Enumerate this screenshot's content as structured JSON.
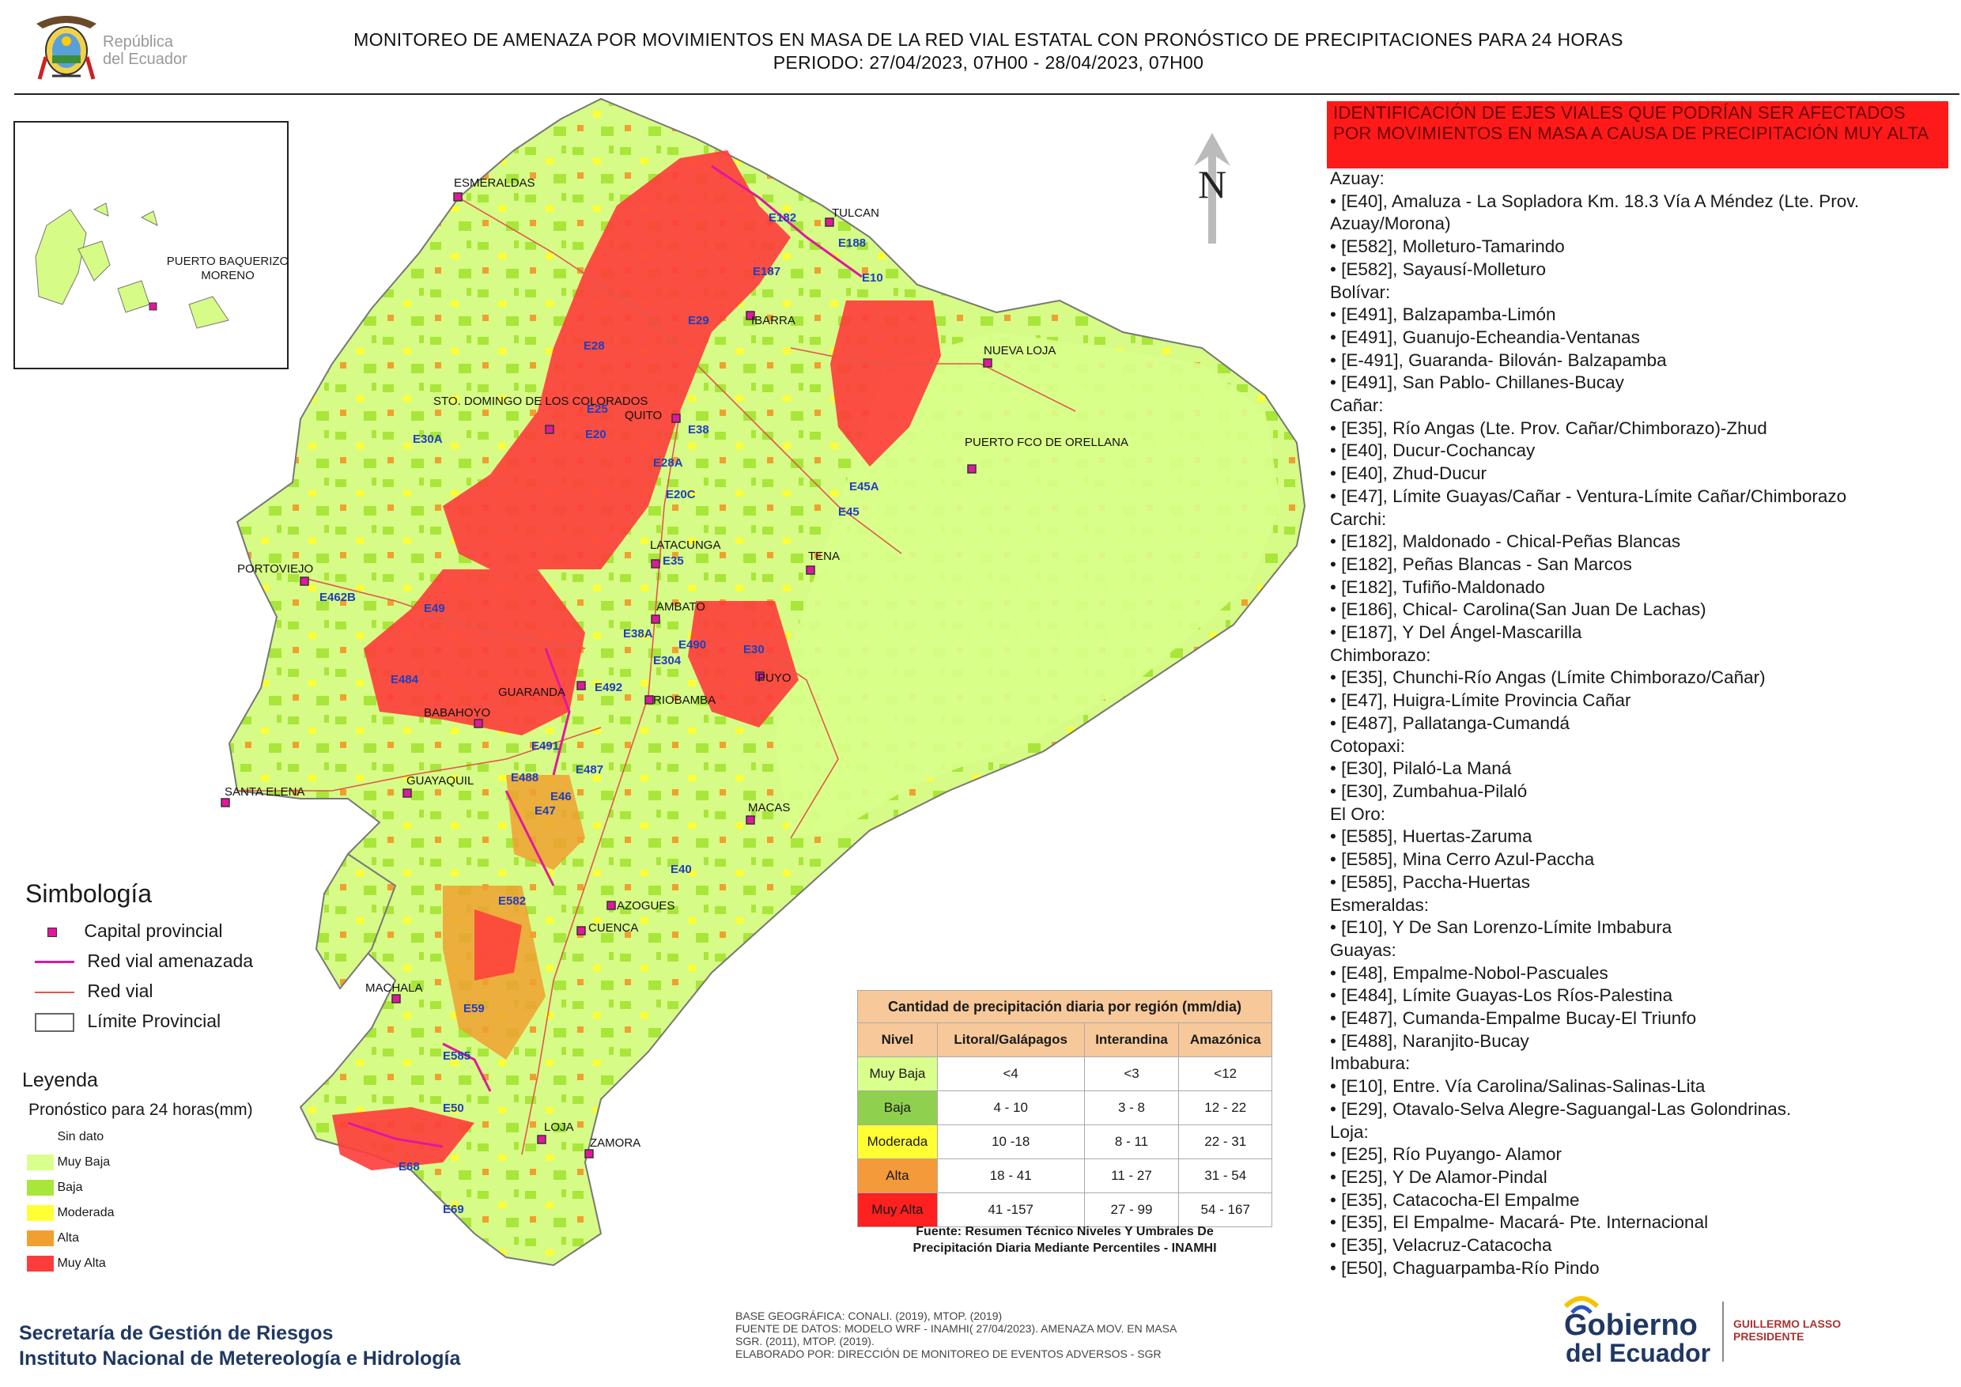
{
  "header": {
    "logo_text_line1": "República",
    "logo_text_line2": "del Ecuador",
    "title_line1": "MONITOREO DE AMENAZA POR MOVIMIENTOS EN MASA DE LA RED VIAL  ESTATAL  CON PRONÓSTICO  DE  PRECIPITACIONES PARA 24 HORAS",
    "title_line2": "PERIODO: 27/04/2023, 07H00 - 28/04/2023, 07H00"
  },
  "map": {
    "north_label": "N",
    "inset_label": "PUERTO BAQUERIZO MORENO",
    "cities": [
      "ESMERALDAS",
      "TULCAN",
      "IBARRA",
      "NUEVA LOJA",
      "STO. DOMINGO DE LOS COLORADOS",
      "QUITO",
      "PUERTO FCO DE ORELLANA",
      "PORTOVIEJO",
      "LATACUNGA",
      "TENA",
      "AMBATO",
      "PUYO",
      "GUARANDA",
      "RIOBAMBA",
      "BABAHOYO",
      "SANTA ELENA",
      "GUAYAQUIL",
      "MACAS",
      "AZOGUES",
      "CUENCA",
      "MACHALA",
      "LOJA",
      "ZAMORA"
    ],
    "road_labels": [
      "E10",
      "E182",
      "E187",
      "E188",
      "E28",
      "E29",
      "E35",
      "E25",
      "E20",
      "E30",
      "E38",
      "E45",
      "E462B",
      "E484",
      "E490",
      "E491",
      "E492",
      "E487",
      "E488",
      "E47",
      "E40",
      "E582",
      "E59",
      "E585",
      "E50",
      "E68",
      "E69",
      "E20C",
      "E28A",
      "E30A",
      "E45A",
      "E49",
      "E38A",
      "E304",
      "E46"
    ]
  },
  "alert": {
    "title": "IDENTIFICACIÓN DE EJES VIALES QUE PODRÍAN SER AFECTADOS POR MOVIMIENTOS EN MASA A CAUSA DE PRECIPITACIÓN MUY ALTA"
  },
  "provinces": [
    {
      "name": "Azuay:",
      "roads": [
        "• [E40], Amaluza - La Sopladora Km. 18.3 Vía A Méndez (Lte. Prov. Azuay/Morona)",
        "• [E582], Molleturo-Tamarindo",
        "• [E582], Sayausí-Molleturo"
      ]
    },
    {
      "name": "Bolívar:",
      "roads": [
        "• [E491], Balzapamba-Limón",
        "• [E491], Guanujo-Echeandia-Ventanas",
        "• [E-491], Guaranda- Bilován- Balzapamba",
        "• [E491], San Pablo- Chillanes-Bucay"
      ]
    },
    {
      "name": "Cañar:",
      "roads": [
        "• [E35], Río Angas (Lte. Prov. Cañar/Chimborazo)-Zhud",
        "• [E40], Ducur-Cochancay",
        "• [E40], Zhud-Ducur",
        "• [E47], Límite Guayas/Cañar - Ventura-Límite Cañar/Chimborazo"
      ]
    },
    {
      "name": "Carchi:",
      "roads": [
        "• [E182], Maldonado - Chical-Peñas Blancas",
        "• [E182], Peñas Blancas - San Marcos",
        "• [E182], Tufiño-Maldonado",
        "• [E186], Chical- Carolina(San Juan De Lachas)",
        "• [E187], Y Del Ángel-Mascarilla"
      ]
    },
    {
      "name": "Chimborazo:",
      "roads": [
        "• [E35], Chunchi-Río Angas (Límite Chimborazo/Cañar)",
        "• [E47], Huigra-Límite Provincia Cañar",
        "• [E487], Pallatanga-Cumandá"
      ]
    },
    {
      "name": "Cotopaxi:",
      "roads": [
        "• [E30], Pilaló-La Maná",
        "• [E30], Zumbahua-Pilaló"
      ]
    },
    {
      "name": "El Oro:",
      "roads": [
        "• [E585], Huertas-Zaruma",
        "• [E585], Mina Cerro Azul-Paccha",
        "• [E585], Paccha-Huertas"
      ]
    },
    {
      "name": "Esmeraldas:",
      "roads": [
        "• [E10], Y De San Lorenzo-Límite Imbabura"
      ]
    },
    {
      "name": "Guayas:",
      "roads": [
        "• [E48], Empalme-Nobol-Pascuales",
        "• [E484], Límite Guayas-Los Ríos-Palestina",
        "• [E487], Cumanda-Empalme Bucay-El Triunfo",
        "• [E488], Naranjito-Bucay"
      ]
    },
    {
      "name": "Imbabura:",
      "roads": [
        "• [E10], Entre. Vía Carolina/Salinas-Salinas-Lita",
        "• [E29], Otavalo-Selva Alegre-Saguangal-Las Golondrinas."
      ]
    },
    {
      "name": "Loja:",
      "roads": [
        "• [E25], Río Puyango- Alamor",
        "• [E25], Y De Alamor-Pindal",
        "• [E35], Catacocha-El Empalme",
        "• [E35], El Empalme- Macará- Pte. Internacional",
        "• [E35], Velacruz-Catacocha",
        "• [E50], Chaguarpamba-Río Pindo"
      ]
    }
  ],
  "simbologia": {
    "title": "Simbología",
    "items": [
      {
        "label": "Capital provincial",
        "icon": "capital-marker-icon"
      },
      {
        "label": "Red vial amenazada",
        "color": "#e0189e"
      },
      {
        "label": "Red vial",
        "color": "#e0584a"
      },
      {
        "label": "Límite Provincial",
        "color": "#666666"
      }
    ]
  },
  "leyenda": {
    "title": "Leyenda",
    "subtitle": "Pronóstico para 24 horas(mm)",
    "items": [
      {
        "label": "Sin dato",
        "color": "#ffffff"
      },
      {
        "label": "Muy Baja",
        "color": "#d9ff8c"
      },
      {
        "label": "Baja",
        "color": "#a8e63a"
      },
      {
        "label": "Moderada",
        "color": "#ffff33"
      },
      {
        "label": "Alta",
        "color": "#f0a030"
      },
      {
        "label": "Muy Alta",
        "color": "#ff3b3b"
      }
    ]
  },
  "precip_table": {
    "caption": "Cantidad de precipitación diaria por región (mm/dia)",
    "headers": [
      "Nivel",
      "Litoral/Galápagos",
      "Interandina",
      "Amazónica"
    ],
    "rows": [
      {
        "level": "Muy Baja",
        "color": "#d9ff8c",
        "values": [
          "<4",
          "<3",
          "<12"
        ]
      },
      {
        "level": "Baja",
        "color": "#8fd14f",
        "values": [
          "4 - 10",
          "3 - 8",
          "12 - 22"
        ]
      },
      {
        "level": "Moderada",
        "color": "#ffff33",
        "values": [
          "10 -18",
          "8 - 11",
          "22 - 31"
        ]
      },
      {
        "level": "Alta",
        "color": "#f59a3a",
        "values": [
          "18 - 41",
          "11 - 27",
          "31 - 54"
        ]
      },
      {
        "level": "Muy Alta",
        "color": "#ff2020",
        "values": [
          "41 -157",
          "27 - 99",
          "54 - 167"
        ]
      }
    ],
    "source_line1": "Fuente: Resumen Técnico Niveles Y Umbrales De",
    "source_line2": "Precipitación Diaria Mediante Percentiles - INAMHI"
  },
  "footer": {
    "org_line1": "Secretaría de Gestión de Riesgos",
    "org_line2": "Instituto Nacional de Metereología e Hidrología",
    "credits": [
      "BASE GEOGRÁFICA: CONALI. (2019), MTOP. (2019)",
      "FUENTE DE DATOS: MODELO WRF - INAMHI( 27/04/2023).  AMENAZA MOV. EN MASA",
      "SGR. (2011), MTOP. (2019).",
      "ELABORADO POR: DIRECCIÓN DE MONITOREO DE EVENTOS ADVERSOS - SGR"
    ],
    "gob_line1": "Gobierno",
    "gob_line2": "del Ecuador",
    "president_line1": "GUILLERMO LASSO",
    "president_line2": "PRESIDENTE"
  }
}
